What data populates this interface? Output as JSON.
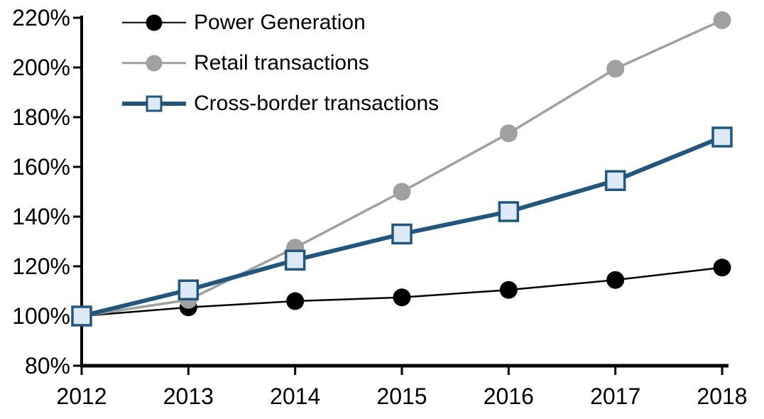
{
  "chart_data": {
    "type": "line",
    "categories": [
      "2012",
      "2013",
      "2014",
      "2015",
      "2016",
      "2017",
      "2018"
    ],
    "series": [
      {
        "name": "Power Generation",
        "color": "#000000",
        "marker": "circle",
        "marker_fill": "#000000",
        "line_width": 2.5,
        "values": [
          100,
          103.5,
          106,
          107.5,
          110.5,
          114.5,
          119.5
        ]
      },
      {
        "name": "Retail transactions",
        "color": "#a0a0a0",
        "marker": "circle",
        "marker_fill": "#a0a0a0",
        "line_width": 3.5,
        "values": [
          100,
          106.5,
          127.5,
          150,
          173.5,
          199.5,
          219
        ]
      },
      {
        "name": "Cross-border transactions",
        "color": "#21567e",
        "marker": "square",
        "marker_fill": "#dde9f5",
        "line_width": 6,
        "values": [
          100,
          110.5,
          122.5,
          133,
          142,
          154.5,
          172
        ]
      }
    ],
    "xlabel": "",
    "ylabel": "",
    "ylim": [
      80,
      220
    ],
    "y_ticks": [
      {
        "value": 220,
        "label": "220%"
      },
      {
        "value": 200,
        "label": "200%"
      },
      {
        "value": 180,
        "label": "180%"
      },
      {
        "value": 160,
        "label": "160%"
      },
      {
        "value": 140,
        "label": "140%"
      },
      {
        "value": 120,
        "label": "120%"
      },
      {
        "value": 100,
        "label": "100%"
      },
      {
        "value": 80,
        "label": "80%"
      }
    ],
    "legend_position": "top-left",
    "grid": false,
    "background_color": "#ffffff",
    "axis_color": "#000000"
  }
}
